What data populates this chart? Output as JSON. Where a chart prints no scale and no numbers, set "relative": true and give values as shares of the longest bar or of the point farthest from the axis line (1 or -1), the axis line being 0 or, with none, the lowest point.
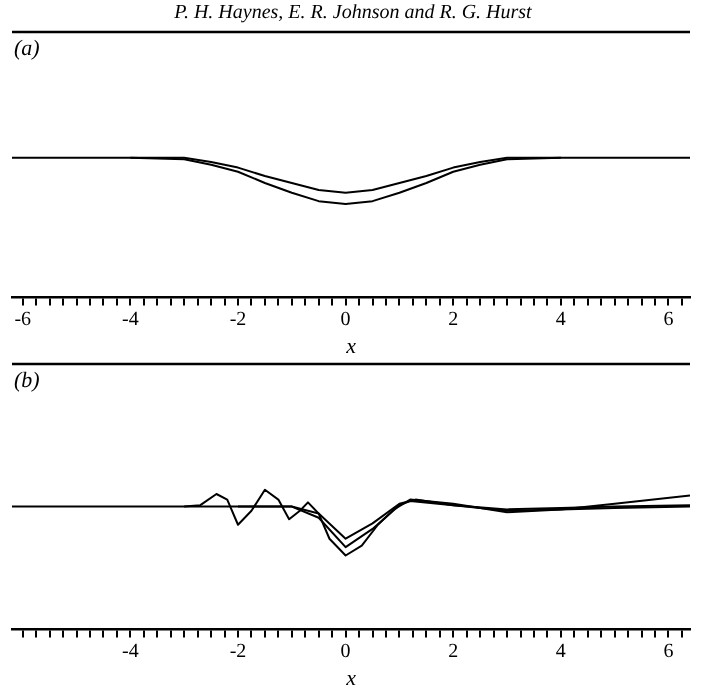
{
  "chart_data": [
    {
      "type": "line",
      "title": "(a)",
      "xlabel": "x",
      "annotations": [
        "P. H. Haynes, E. R. Johnson and R. G. Hurst"
      ],
      "relative": true,
      "grid": false,
      "legend": false,
      "marker": "none",
      "line_style": "solid",
      "xlim": [
        -6.2,
        6.4
      ],
      "xticks": [
        -6,
        {
          "value": -5.75,
          "label": null
        },
        {
          "value": -5.5,
          "label": null
        },
        {
          "value": -5.25,
          "label": null
        },
        {
          "value": -5,
          "label": null
        },
        {
          "value": -4.75,
          "label": null
        },
        {
          "value": -4.5,
          "label": null
        },
        {
          "value": -4.25,
          "label": null
        },
        -4,
        {
          "value": -3.75,
          "label": null
        },
        {
          "value": -3.5,
          "label": null
        },
        {
          "value": -3.25,
          "label": null
        },
        {
          "value": -3,
          "label": null
        },
        {
          "value": -2.75,
          "label": null
        },
        {
          "value": -2.5,
          "label": null
        },
        {
          "value": -2.25,
          "label": null
        },
        -2,
        {
          "value": -1.75,
          "label": null
        },
        {
          "value": -1.5,
          "label": null
        },
        {
          "value": -1.25,
          "label": null
        },
        {
          "value": -1,
          "label": null
        },
        {
          "value": -0.75,
          "label": null
        },
        {
          "value": -0.5,
          "label": null
        },
        {
          "value": -0.25,
          "label": null
        },
        0,
        {
          "value": 0.25,
          "label": null
        },
        {
          "value": 0.5,
          "label": null
        },
        {
          "value": 0.75,
          "label": null
        },
        {
          "value": 1,
          "label": null
        },
        {
          "value": 1.25,
          "label": null
        },
        {
          "value": 1.5,
          "label": null
        },
        {
          "value": 1.75,
          "label": null
        },
        2,
        {
          "value": 2.25,
          "label": null
        },
        {
          "value": 2.5,
          "label": null
        },
        {
          "value": 2.75,
          "label": null
        },
        {
          "value": 3,
          "label": null
        },
        {
          "value": 3.25,
          "label": null
        },
        {
          "value": 3.5,
          "label": null
        },
        {
          "value": 3.75,
          "label": null
        },
        4,
        {
          "value": 4.25,
          "label": null
        },
        {
          "value": 4.5,
          "label": null
        },
        {
          "value": 4.75,
          "label": null
        },
        {
          "value": 5,
          "label": null
        },
        {
          "value": 5.25,
          "label": null
        },
        {
          "value": 5.5,
          "label": null
        },
        {
          "value": 5.75,
          "label": null
        },
        6,
        {
          "value": 6.25,
          "label": null
        }
      ],
      "series": [
        {
          "color": "#000000",
          "x": [
            -6.2,
            -4,
            -3,
            -2.5,
            -2,
            -1.5,
            -1,
            -0.5,
            0,
            0.5,
            1,
            1.5,
            2,
            2.5,
            3,
            4,
            6.4
          ],
          "values": [
            1,
            1,
            1,
            0.97,
            0.93,
            0.87,
            0.82,
            0.77,
            0.75,
            0.77,
            0.82,
            0.87,
            0.93,
            0.97,
            1,
            1,
            1
          ]
        },
        {
          "color": "#000000",
          "x": [
            -4,
            -3,
            -2.5,
            -2,
            -1.5,
            -1,
            -0.5,
            0,
            0.5,
            1,
            1.5,
            2,
            2.5,
            3,
            4
          ],
          "values": [
            1,
            0.99,
            0.95,
            0.9,
            0.82,
            0.75,
            0.69,
            0.67,
            0.69,
            0.75,
            0.82,
            0.9,
            0.95,
            0.99,
            1
          ]
        }
      ]
    },
    {
      "type": "line",
      "title": "(b)",
      "xlabel": "x",
      "relative": true,
      "grid": false,
      "legend": false,
      "marker": "none",
      "line_style": "solid",
      "xlim": [
        -6.2,
        6.4
      ],
      "xticks": [
        {
          "value": -6,
          "label": null
        },
        {
          "value": -5.75,
          "label": null
        },
        {
          "value": -5.5,
          "label": null
        },
        {
          "value": -5.25,
          "label": null
        },
        {
          "value": -5,
          "label": null
        },
        {
          "value": -4.75,
          "label": null
        },
        {
          "value": -4.5,
          "label": null
        },
        {
          "value": -4.25,
          "label": null
        },
        -4,
        {
          "value": -3.75,
          "label": null
        },
        {
          "value": -3.5,
          "label": null
        },
        {
          "value": -3.25,
          "label": null
        },
        {
          "value": -3,
          "label": null
        },
        {
          "value": -2.75,
          "label": null
        },
        {
          "value": -2.5,
          "label": null
        },
        {
          "value": -2.25,
          "label": null
        },
        -2,
        {
          "value": -1.75,
          "label": null
        },
        {
          "value": -1.5,
          "label": null
        },
        {
          "value": -1.25,
          "label": null
        },
        {
          "value": -1,
          "label": null
        },
        {
          "value": -0.75,
          "label": null
        },
        {
          "value": -0.5,
          "label": null
        },
        {
          "value": -0.25,
          "label": null
        },
        0,
        {
          "value": 0.25,
          "label": null
        },
        {
          "value": 0.5,
          "label": null
        },
        {
          "value": 0.75,
          "label": null
        },
        {
          "value": 1,
          "label": null
        },
        {
          "value": 1.25,
          "label": null
        },
        {
          "value": 1.5,
          "label": null
        },
        {
          "value": 1.75,
          "label": null
        },
        2,
        {
          "value": 2.25,
          "label": null
        },
        {
          "value": 2.5,
          "label": null
        },
        {
          "value": 2.75,
          "label": null
        },
        {
          "value": 3,
          "label": null
        },
        {
          "value": 3.25,
          "label": null
        },
        {
          "value": 3.5,
          "label": null
        },
        {
          "value": 3.75,
          "label": null
        },
        4,
        {
          "value": 4.25,
          "label": null
        },
        {
          "value": 4.5,
          "label": null
        },
        {
          "value": 4.75,
          "label": null
        },
        {
          "value": 5,
          "label": null
        },
        {
          "value": 5.25,
          "label": null
        },
        {
          "value": 5.5,
          "label": null
        },
        {
          "value": 5.75,
          "label": null
        },
        6,
        {
          "value": 6.25,
          "label": null
        }
      ],
      "series": [
        {
          "color": "#000000",
          "x": [
            -6.2,
            -3,
            -2.7,
            -2.4,
            -2.2,
            -2.0,
            -1.75,
            -1.5,
            -1.25,
            -1.05,
            -0.85,
            -0.7,
            -0.5,
            -0.3,
            0,
            0.3,
            0.6,
            0.9,
            1.2,
            2,
            3,
            4,
            5,
            6.4
          ],
          "values": [
            0.88,
            0.88,
            0.89,
            0.97,
            0.93,
            0.75,
            0.85,
            1,
            0.93,
            0.79,
            0.85,
            0.91,
            0.83,
            0.65,
            0.53,
            0.6,
            0.75,
            0.86,
            0.93,
            0.9,
            0.84,
            0.86,
            0.9,
            0.96
          ]
        },
        {
          "color": "#000000",
          "x": [
            -3,
            -1,
            -0.5,
            0,
            0.5,
            1,
            1.2,
            2,
            3,
            4,
            5,
            6.4
          ],
          "values": [
            0.88,
            0.88,
            0.8,
            0.59,
            0.72,
            0.89,
            0.92,
            0.89,
            0.85,
            0.86,
            0.87,
            0.88
          ]
        },
        {
          "color": "#000000",
          "x": [
            -2,
            -1,
            -0.5,
            0,
            0.5,
            1,
            1.3,
            2,
            3,
            4,
            5,
            6.4
          ],
          "values": [
            0.88,
            0.88,
            0.83,
            0.65,
            0.76,
            0.9,
            0.93,
            0.89,
            0.86,
            0.87,
            0.88,
            0.89
          ]
        }
      ]
    }
  ]
}
